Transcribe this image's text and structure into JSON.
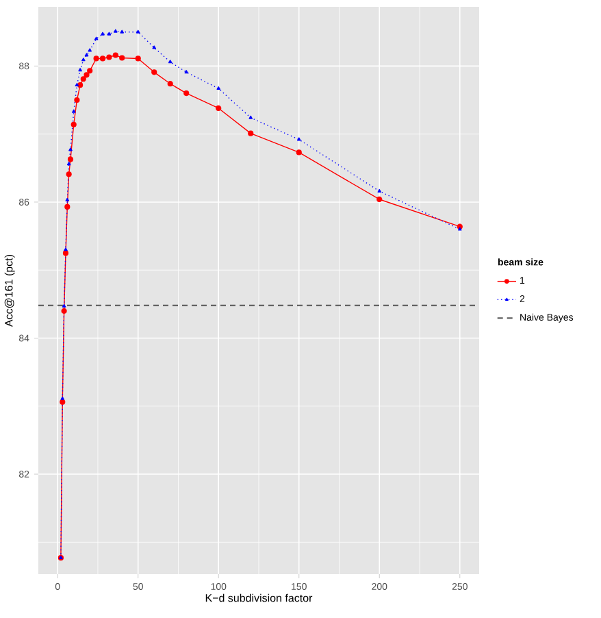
{
  "chart_data": {
    "type": "line",
    "xlabel": "K−d subdivision factor",
    "ylabel": "Acc@161 (pct)",
    "legend_title": "beam size",
    "legend": "right",
    "grid": true,
    "xlim": [
      -12,
      262
    ],
    "ylim": [
      80.53,
      88.87
    ],
    "xticks": [
      0,
      50,
      100,
      150,
      200,
      250
    ],
    "yticks": [
      82,
      84,
      86,
      88
    ],
    "x": [
      2,
      3,
      4,
      5,
      6,
      7,
      8,
      10,
      12,
      14,
      16,
      18,
      20,
      24,
      28,
      32,
      36,
      40,
      50,
      60,
      70,
      80,
      100,
      120,
      150,
      200,
      250
    ],
    "series": [
      {
        "name": "1",
        "color": "#ff0000",
        "marker": "circle",
        "line_style": "solid",
        "values": [
          80.77,
          83.06,
          84.4,
          85.25,
          85.93,
          86.41,
          86.63,
          87.14,
          87.5,
          87.72,
          87.81,
          87.87,
          87.93,
          88.11,
          88.11,
          88.13,
          88.16,
          88.12,
          88.11,
          87.91,
          87.74,
          87.6,
          87.38,
          87.01,
          86.73,
          86.04,
          85.64
        ]
      },
      {
        "name": "2",
        "color": "#0000ff",
        "marker": "triangle",
        "line_style": "dotted",
        "values": [
          80.77,
          83.11,
          84.47,
          85.3,
          86.03,
          86.56,
          86.77,
          87.33,
          87.72,
          87.94,
          88.09,
          88.16,
          88.23,
          88.4,
          88.47,
          88.47,
          88.51,
          88.5,
          88.5,
          88.27,
          88.06,
          87.91,
          87.67,
          87.24,
          86.92,
          86.16,
          85.6
        ]
      }
    ],
    "ref_lines": [
      {
        "axis": "y",
        "value": 84.48,
        "label": "Naive Bayes",
        "color": "#555555",
        "line_style": "dashed"
      }
    ]
  }
}
